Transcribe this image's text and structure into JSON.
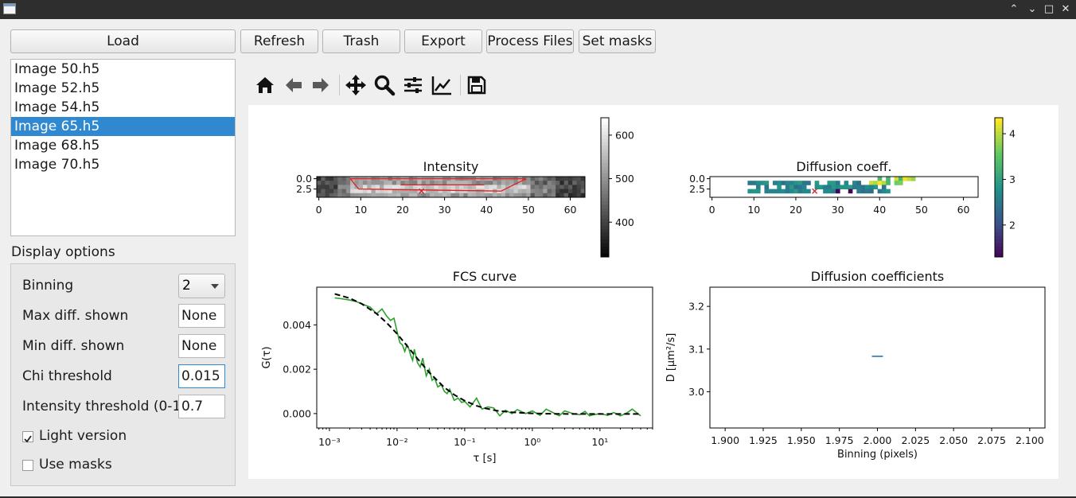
{
  "window": {
    "controls": [
      "⌃",
      "⌄",
      "□",
      "✕"
    ]
  },
  "toolbar_buttons": {
    "load": "Load",
    "refresh": "Refresh",
    "trash": "Trash",
    "export": "Export",
    "process_files": "Process Files",
    "set_masks": "Set masks"
  },
  "files": [
    "Image 50.h5",
    "Image 52.h5",
    "Image 54.h5",
    "Image 65.h5",
    "Image 68.h5",
    "Image 70.h5"
  ],
  "selected_file": "Image 65.h5",
  "display_options": {
    "title": "Display options",
    "binning_label": "Binning",
    "binning_value": "2",
    "max_diff_label": "Max diff. shown",
    "max_diff_value": "None",
    "min_diff_label": "Min diff. shown",
    "min_diff_value": "None",
    "chi_label": "Chi threshold",
    "chi_value": "0.015",
    "intensity_label": "Intensity threshold (0-1)",
    "intensity_value": "0.7",
    "light_label": "Light version",
    "light_checked": true,
    "masks_label": "Use masks",
    "masks_checked": false
  },
  "plot_toolbar": [
    "home-icon",
    "back-arrow-icon",
    "forward-arrow-icon",
    "pan-icon",
    "zoom-icon",
    "configure-subplots-icon",
    "edit-axis-icon",
    "save-icon"
  ],
  "chart_data": [
    {
      "type": "heatmap",
      "title": "Intensity",
      "colormap": "gray",
      "x_ticks": [
        "0",
        "10",
        "20",
        "30",
        "40",
        "50",
        "60"
      ],
      "y_ticks": [
        "0.0",
        "2.5"
      ],
      "colorbar_ticks": [
        "600",
        "500",
        "400"
      ],
      "colorbar_range": [
        320,
        640
      ],
      "marker": "x"
    },
    {
      "type": "heatmap",
      "title": "Diffusion coeff.",
      "colormap": "viridis",
      "x_ticks": [
        "0",
        "10",
        "20",
        "30",
        "40",
        "50",
        "60"
      ],
      "y_ticks": [
        "0.0",
        "2.5"
      ],
      "colorbar_ticks": [
        "4",
        "3",
        "2"
      ],
      "colorbar_range": [
        1.3,
        4.35
      ],
      "marker": "x"
    },
    {
      "type": "line",
      "title": "FCS curve",
      "xlabel": "τ [s]",
      "ylabel": "G(τ)",
      "xscale": "log",
      "x_ticks": [
        "10⁻³",
        "10⁻²",
        "10⁻¹",
        "10⁰",
        "10¹"
      ],
      "y_ticks": [
        "0.000",
        "0.002",
        "0.004"
      ],
      "xlim": [
        0.00065,
        60
      ],
      "ylim": [
        -0.00065,
        0.0057
      ],
      "series": [
        {
          "style": "solid",
          "color": "#2ca02c",
          "x": [
            0.0012,
            0.0015,
            0.002,
            0.0025,
            0.003,
            0.004,
            0.005,
            0.006,
            0.007,
            0.008,
            0.009,
            0.01,
            0.011,
            0.012,
            0.013,
            0.014,
            0.015,
            0.016,
            0.017,
            0.018,
            0.02,
            0.022,
            0.024,
            0.027,
            0.03,
            0.033,
            0.036,
            0.04,
            0.045,
            0.05,
            0.055,
            0.06,
            0.07,
            0.08,
            0.09,
            0.1,
            0.12,
            0.15,
            0.18,
            0.22,
            0.27,
            0.33,
            0.4,
            0.5,
            0.6,
            0.8,
            1.0,
            1.3,
            1.6,
            2,
            2.5,
            3,
            4,
            5,
            6,
            7,
            8,
            10,
            13,
            16,
            20,
            25,
            30,
            40
          ],
          "y": [
            0.00522,
            0.00518,
            0.00512,
            0.00505,
            0.00495,
            0.0048,
            0.0045,
            0.00472,
            0.0044,
            0.0042,
            0.0043,
            0.0037,
            0.0032,
            0.0031,
            0.0028,
            0.0031,
            0.0029,
            0.0026,
            0.0024,
            0.0029,
            0.0023,
            0.0021,
            0.0025,
            0.0017,
            0.002,
            0.0015,
            0.0016,
            0.0012,
            0.0013,
            0.001,
            0.0009,
            0.0011,
            0.0006,
            0.0007,
            0.0005,
            0.00055,
            0.0003,
            0.0007,
            0.0002,
            0.0003,
            0.00025,
            -0.0001,
            0.00015,
            0.0,
            0.00018,
            0.0,
            0.00012,
            -8e-05,
            0.0002,
            5e-05,
            -0.0001,
            0.00012,
            0.0,
            -5e-05,
            0.0001,
            -0.0001,
            -5e-05,
            0.0,
            -8e-05,
            5e-05,
            -0.0001,
            3e-05,
            0.0002,
            -0.0001
          ]
        },
        {
          "style": "dashed",
          "color": "#000000",
          "x": [
            0.0012,
            0.002,
            0.003,
            0.005,
            0.007,
            0.01,
            0.015,
            0.02,
            0.03,
            0.05,
            0.07,
            0.1,
            0.15,
            0.2,
            0.3,
            0.5,
            0.7,
            1,
            2,
            5,
            10,
            20,
            40
          ],
          "y": [
            0.0054,
            0.0052,
            0.00495,
            0.0045,
            0.0041,
            0.0036,
            0.00295,
            0.00248,
            0.00185,
            0.00118,
            0.00085,
            0.00058,
            0.00035,
            0.00024,
            0.00013,
            6e-05,
            3e-05,
            1e-05,
            -1e-05,
            -2e-05,
            -2e-05,
            -2e-05,
            -2e-05
          ]
        }
      ]
    },
    {
      "type": "scatter",
      "title": "Diffusion coefficients",
      "xlabel": "Binning (pixels)",
      "ylabel": "D [μm²/s]",
      "x_ticks": [
        "1.900",
        "1.925",
        "1.950",
        "1.975",
        "2.000",
        "2.025",
        "2.050",
        "2.075",
        "2.100"
      ],
      "y_ticks": [
        "3.0",
        "3.1",
        "3.2"
      ],
      "xlim": [
        1.89,
        2.11
      ],
      "ylim": [
        2.915,
        3.245
      ],
      "marker": "_",
      "color": "#1f77b4",
      "points": [
        {
          "x": 2.0,
          "y": 3.083
        }
      ]
    }
  ]
}
